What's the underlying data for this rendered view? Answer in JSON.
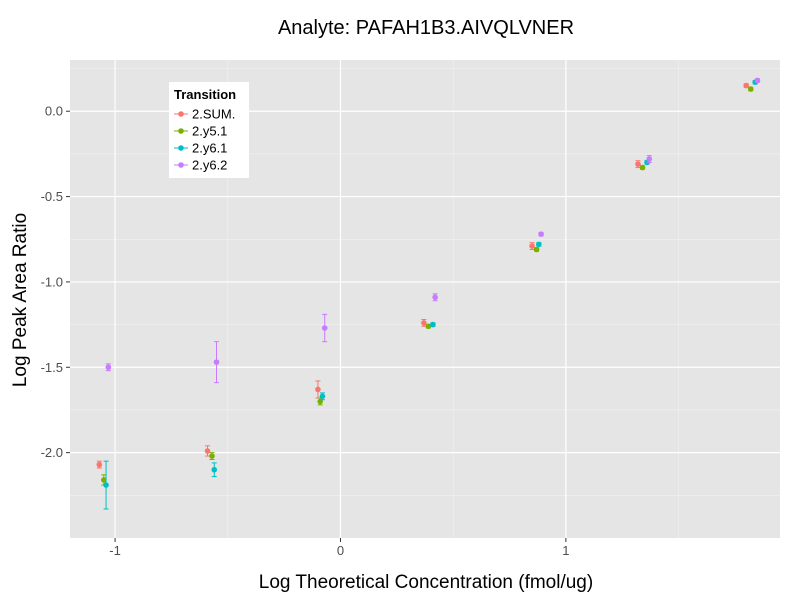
{
  "chart_data": {
    "type": "scatter",
    "title": "Analyte: PAFAH1B3.AIVQLVNER",
    "xlabel": "Log Theoretical Concentration (fmol/ug)",
    "ylabel": "Log Peak Area Ratio",
    "xlim": [
      -1.2,
      1.95
    ],
    "ylim": [
      -2.5,
      0.3
    ],
    "x_ticks": [
      -1,
      0,
      1
    ],
    "y_ticks": [
      -2.0,
      -1.5,
      -1.0,
      -0.5,
      0.0
    ],
    "x_tick_labels": [
      "-1",
      "0",
      "1"
    ],
    "y_tick_labels": [
      "-2.0",
      "-1.5",
      "-1.0",
      "-0.5",
      "0.0"
    ],
    "grid": true,
    "legend": {
      "title": "Transition",
      "placement": "top-left"
    },
    "series": [
      {
        "name": "2.SUM.",
        "color": "#F8766D",
        "x": [
          -1.07,
          -0.59,
          -0.1,
          0.37,
          0.85,
          1.32,
          1.8
        ],
        "y": [
          -2.07,
          -1.99,
          -1.63,
          -1.24,
          -0.79,
          -0.31,
          0.15
        ],
        "err": [
          0.02,
          0.03,
          0.05,
          0.02,
          0.02,
          0.02,
          0.01
        ]
      },
      {
        "name": "2.y5.1",
        "color": "#7CAE00",
        "x": [
          -1.05,
          -0.57,
          -0.09,
          0.39,
          0.87,
          1.34,
          1.82
        ],
        "y": [
          -2.16,
          -2.02,
          -1.7,
          -1.26,
          -0.81,
          -0.33,
          0.13
        ],
        "err": [
          0.03,
          0.02,
          0.02,
          0.01,
          0.01,
          0.01,
          0.01
        ]
      },
      {
        "name": "2.y6.1",
        "color": "#00BFC4",
        "x": [
          -1.04,
          -0.56,
          -0.08,
          0.41,
          0.88,
          1.36,
          1.84
        ],
        "y": [
          -2.19,
          -2.1,
          -1.67,
          -1.25,
          -0.78,
          -0.3,
          0.17
        ],
        "err": [
          0.14,
          0.04,
          0.02,
          0.01,
          0.01,
          0.01,
          0.01
        ]
      },
      {
        "name": "2.y6.2",
        "color": "#C77CFF",
        "x": [
          -1.03,
          -0.55,
          -0.07,
          0.42,
          0.89,
          1.37,
          1.85
        ],
        "y": [
          -1.5,
          -1.47,
          -1.27,
          -1.09,
          -0.72,
          -0.28,
          0.18
        ],
        "err": [
          0.02,
          0.12,
          0.08,
          0.02,
          0.01,
          0.02,
          0.01
        ]
      }
    ]
  }
}
